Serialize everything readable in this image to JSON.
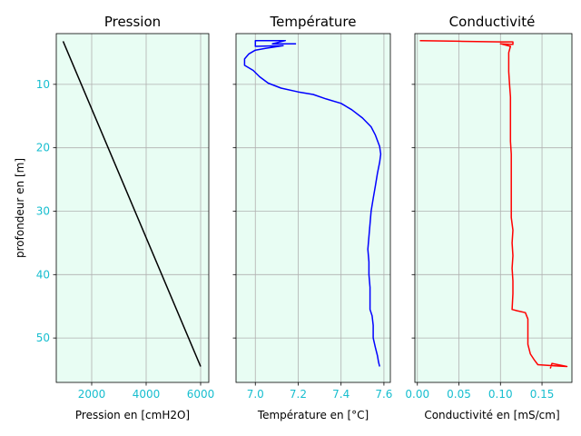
{
  "colors": {
    "axes_background": "#e8fdf3",
    "grid": "#b0b0b0",
    "ytick_labels": "#17becf",
    "xtick_labels": "#17becf"
  },
  "y_axis": {
    "label": "profondeur en [m]",
    "lim": [
      57,
      2
    ],
    "inverted": true,
    "ticks": [
      10,
      20,
      30,
      40,
      50
    ]
  },
  "chart_data": [
    {
      "type": "line",
      "title": "Pression",
      "xlabel": "Pression en [cmH2O]",
      "ylabel": "profondeur en [m]",
      "xlim": [
        700,
        6300
      ],
      "ylim": [
        57,
        2
      ],
      "xticks": [
        2000,
        4000,
        6000
      ],
      "xtick_labels": [
        "2000",
        "4000",
        "6000"
      ],
      "grid": true,
      "series": [
        {
          "color": "#000000",
          "points": [
            [
              950,
              3.2
            ],
            [
              6000,
              54.5
            ]
          ]
        }
      ]
    },
    {
      "type": "line",
      "title": "Température",
      "xlabel": "Température en [°C]",
      "ylabel": "",
      "xlim": [
        6.91,
        7.63
      ],
      "ylim": [
        57,
        2
      ],
      "xticks": [
        7.0,
        7.2,
        7.4,
        7.6
      ],
      "xtick_labels": [
        "7.0",
        "7.2",
        "7.4",
        "7.6"
      ],
      "grid": true,
      "series": [
        {
          "color": "#0000ff",
          "points": [
            [
              7.19,
              3.6
            ],
            [
              7.08,
              3.6
            ],
            [
              7.14,
              3.1
            ],
            [
              7.0,
              3.1
            ],
            [
              7.0,
              4.0
            ],
            [
              7.13,
              3.9
            ],
            [
              7.05,
              4.3
            ],
            [
              7.0,
              4.6
            ],
            [
              6.97,
              5.2
            ],
            [
              6.95,
              6.0
            ],
            [
              6.95,
              7.0
            ],
            [
              6.99,
              7.8
            ],
            [
              7.02,
              8.8
            ],
            [
              7.06,
              9.8
            ],
            [
              7.12,
              10.6
            ],
            [
              7.2,
              11.2
            ],
            [
              7.27,
              11.6
            ],
            [
              7.33,
              12.3
            ],
            [
              7.4,
              13.0
            ],
            [
              7.45,
              14.0
            ],
            [
              7.5,
              15.3
            ],
            [
              7.54,
              16.7
            ],
            [
              7.56,
              18.0
            ],
            [
              7.58,
              19.8
            ],
            [
              7.585,
              21.0
            ],
            [
              7.58,
              22.3
            ],
            [
              7.57,
              24.0
            ],
            [
              7.56,
              26.0
            ],
            [
              7.55,
              28.0
            ],
            [
              7.54,
              30.0
            ],
            [
              7.535,
              32.0
            ],
            [
              7.53,
              34.0
            ],
            [
              7.525,
              36.0
            ],
            [
              7.53,
              38.0
            ],
            [
              7.53,
              40.0
            ],
            [
              7.535,
              42.0
            ],
            [
              7.535,
              44.0
            ],
            [
              7.535,
              45.5
            ],
            [
              7.545,
              46.5
            ],
            [
              7.55,
              48.0
            ],
            [
              7.55,
              50.0
            ],
            [
              7.56,
              51.5
            ],
            [
              7.57,
              52.8
            ],
            [
              7.575,
              53.8
            ],
            [
              7.58,
              54.5
            ]
          ]
        }
      ]
    },
    {
      "type": "line",
      "title": "Conductivité",
      "xlabel": "Conductivité en [mS/cm]",
      "ylabel": "",
      "xlim": [
        -0.003,
        0.186
      ],
      "ylim": [
        57,
        2
      ],
      "xticks": [
        0.0,
        0.05,
        0.1,
        0.15
      ],
      "xtick_labels": [
        "0.00",
        "0.05",
        "0.10",
        "0.15"
      ],
      "grid": true,
      "series": [
        {
          "color": "#ff0000",
          "points": [
            [
              0.003,
              3.1
            ],
            [
              0.05,
              3.2
            ],
            [
              0.1,
              3.3
            ],
            [
              0.115,
              3.3
            ],
            [
              0.115,
              3.7
            ],
            [
              0.1,
              3.6
            ],
            [
              0.112,
              4.0
            ],
            [
              0.11,
              5.0
            ],
            [
              0.11,
              8.0
            ],
            [
              0.111,
              10.0
            ],
            [
              0.112,
              12.0
            ],
            [
              0.112,
              15.0
            ],
            [
              0.112,
              19.0
            ],
            [
              0.113,
              21.0
            ],
            [
              0.113,
              24.0
            ],
            [
              0.113,
              28.0
            ],
            [
              0.113,
              31.0
            ],
            [
              0.115,
              33.0
            ],
            [
              0.114,
              35.0
            ],
            [
              0.115,
              37.0
            ],
            [
              0.114,
              39.0
            ],
            [
              0.115,
              41.0
            ],
            [
              0.115,
              43.0
            ],
            [
              0.114,
              45.5
            ],
            [
              0.12,
              45.7
            ],
            [
              0.13,
              46.0
            ],
            [
              0.133,
              47.0
            ],
            [
              0.133,
              49.0
            ],
            [
              0.133,
              51.0
            ],
            [
              0.136,
              52.5
            ],
            [
              0.141,
              53.5
            ],
            [
              0.145,
              54.2
            ],
            [
              0.165,
              54.4
            ],
            [
              0.18,
              54.5
            ],
            [
              0.162,
              54.0
            ],
            [
              0.16,
              54.8
            ]
          ]
        }
      ]
    }
  ]
}
